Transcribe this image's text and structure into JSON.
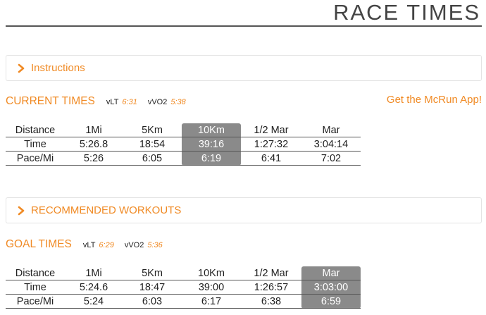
{
  "page": {
    "title": "RACE TIMES"
  },
  "panels": {
    "instructions": "Instructions",
    "recommended": "RECOMMENDED WORKOUTS"
  },
  "app_link": "Get the McRun App!",
  "current": {
    "heading": "CURRENT TIMES",
    "vlt_label": "vLT",
    "vlt_value": "6:31",
    "vvo2_label": "vVO2",
    "vvo2_value": "5:38",
    "highlight_column": "10Km",
    "headers": [
      "Distance",
      "1Mi",
      "5Km",
      "10Km",
      "1/2 Mar",
      "Mar"
    ],
    "time_row": [
      "Time",
      "5:26.8",
      "18:54",
      "39:16",
      "1:27:32",
      "3:04:14"
    ],
    "pace_row": [
      "Pace/Mi",
      "5:26",
      "6:05",
      "6:19",
      "6:41",
      "7:02"
    ]
  },
  "goal": {
    "heading": "GOAL TIMES",
    "vlt_label": "vLT",
    "vlt_value": "6:29",
    "vvo2_label": "vVO2",
    "vvo2_value": "5:36",
    "highlight_column": "Mar",
    "headers": [
      "Distance",
      "1Mi",
      "5Km",
      "10Km",
      "1/2 Mar",
      "Mar"
    ],
    "time_row": [
      "Time",
      "5:24.6",
      "18:47",
      "39:00",
      "1:26:57",
      "3:03:00"
    ],
    "pace_row": [
      "Pace/Mi",
      "5:24",
      "6:03",
      "6:17",
      "6:38",
      "6:59"
    ]
  },
  "colors": {
    "accent": "#f08a24",
    "highlight": "#8a8a8a"
  },
  "icons": {
    "panel_toggle": "chevron-right-icon"
  }
}
